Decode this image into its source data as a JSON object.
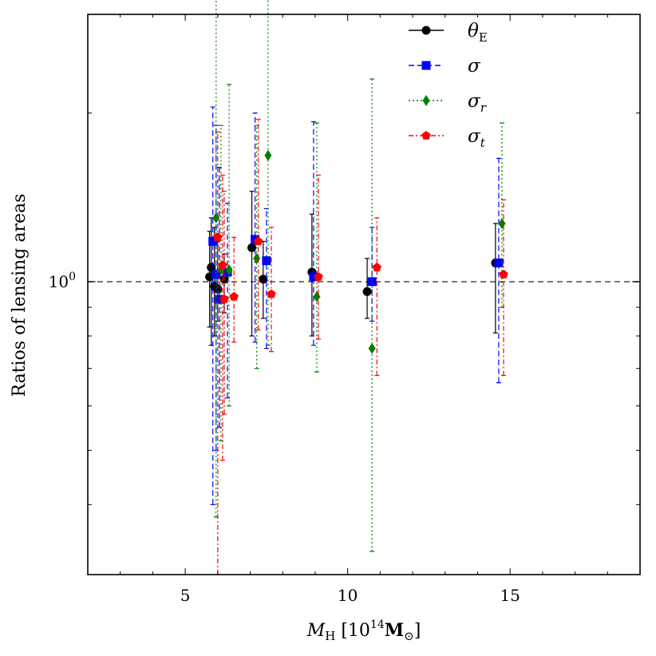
{
  "chart_data": {
    "type": "scatter",
    "title": "",
    "xlabel": "M_H [10^14 M_sun]",
    "ylabel": "Ratios of lensing areas",
    "xlim": [
      2,
      19
    ],
    "ylim": [
      0.3,
      3.0
    ],
    "yscale": "log",
    "xticks": [
      5,
      10,
      15
    ],
    "xtick_labels": [
      "5",
      "10",
      "15"
    ],
    "ytick_label": {
      "base": "10",
      "exponent": "0"
    },
    "reference_line": {
      "y": 1.0,
      "style": "dashed",
      "color": "#777777"
    },
    "series": [
      {
        "name": "theta_E",
        "label": "θ",
        "label_sub": "E",
        "color": "#000000",
        "marker": "circle",
        "line": "solid",
        "points": [
          {
            "x": 5.75,
            "y": 1.02,
            "lo": 0.83,
            "hi": 1.23
          },
          {
            "x": 5.8,
            "y": 1.06,
            "lo": 0.77,
            "hi": 1.3
          },
          {
            "x": 5.9,
            "y": 0.98,
            "lo": 0.8,
            "hi": 1.25
          },
          {
            "x": 6.0,
            "y": 0.97,
            "lo": 0.85,
            "hi": 1.18
          },
          {
            "x": 6.2,
            "y": 1.01,
            "lo": 0.88,
            "hi": 1.12
          },
          {
            "x": 7.05,
            "y": 1.15,
            "lo": 0.8,
            "hi": 1.45
          },
          {
            "x": 7.4,
            "y": 1.01,
            "lo": 0.86,
            "hi": 1.18
          },
          {
            "x": 8.9,
            "y": 1.04,
            "lo": 0.8,
            "hi": 1.32
          },
          {
            "x": 10.6,
            "y": 0.96,
            "lo": 0.86,
            "hi": 1.1
          },
          {
            "x": 14.55,
            "y": 1.08,
            "lo": 0.81,
            "hi": 1.27
          }
        ]
      },
      {
        "name": "sigma",
        "label": "σ",
        "label_sub": "",
        "color": "#0000ff",
        "marker": "square",
        "line": "dashed",
        "points": [
          {
            "x": 5.85,
            "y": 1.18,
            "lo": 0.4,
            "hi": 2.05
          },
          {
            "x": 5.95,
            "y": 1.03,
            "lo": 0.5,
            "hi": 1.9
          },
          {
            "x": 6.05,
            "y": 0.93,
            "lo": 0.55,
            "hi": 1.6
          },
          {
            "x": 6.3,
            "y": 1.04,
            "lo": 0.62,
            "hi": 1.38
          },
          {
            "x": 7.15,
            "y": 1.19,
            "lo": 0.78,
            "hi": 2.0
          },
          {
            "x": 7.5,
            "y": 1.09,
            "lo": 0.76,
            "hi": 1.35
          },
          {
            "x": 8.95,
            "y": 1.02,
            "lo": 0.77,
            "hi": 1.93
          },
          {
            "x": 10.75,
            "y": 1.0,
            "lo": 0.85,
            "hi": 1.25
          },
          {
            "x": 14.65,
            "y": 1.08,
            "lo": 0.66,
            "hi": 1.66
          }
        ]
      },
      {
        "name": "sigma_r",
        "label": "σ",
        "label_sub": "r",
        "color": "#008000",
        "marker": "diamond",
        "line": "dotted",
        "points": [
          {
            "x": 5.95,
            "y": 1.3,
            "lo": 0.38,
            "hi": 4.2
          },
          {
            "x": 6.1,
            "y": 1.05,
            "lo": 0.52,
            "hi": 1.9
          },
          {
            "x": 6.35,
            "y": 1.05,
            "lo": 0.6,
            "hi": 2.25
          },
          {
            "x": 7.2,
            "y": 1.1,
            "lo": 0.7,
            "hi": 1.9
          },
          {
            "x": 7.55,
            "y": 1.68,
            "lo": 0.77,
            "hi": 4.0
          },
          {
            "x": 9.05,
            "y": 0.94,
            "lo": 0.69,
            "hi": 1.92
          },
          {
            "x": 10.75,
            "y": 0.76,
            "lo": 0.33,
            "hi": 2.3
          },
          {
            "x": 14.75,
            "y": 1.27,
            "lo": 0.9,
            "hi": 1.92
          }
        ]
      },
      {
        "name": "sigma_t",
        "label": "σ",
        "label_sub": "t",
        "color": "#ff0000",
        "marker": "pentagon",
        "line": "dashdot",
        "points": [
          {
            "x": 6.0,
            "y": 1.2,
            "lo": 0.3,
            "hi": 1.85
          },
          {
            "x": 6.15,
            "y": 1.07,
            "lo": 0.48,
            "hi": 1.55
          },
          {
            "x": 6.2,
            "y": 0.93,
            "lo": 0.58,
            "hi": 1.45
          },
          {
            "x": 6.5,
            "y": 0.94,
            "lo": 0.78,
            "hi": 1.2
          },
          {
            "x": 7.25,
            "y": 1.18,
            "lo": 0.82,
            "hi": 1.95
          },
          {
            "x": 7.65,
            "y": 0.95,
            "lo": 0.75,
            "hi": 1.25
          },
          {
            "x": 9.1,
            "y": 1.02,
            "lo": 0.79,
            "hi": 1.55
          },
          {
            "x": 10.9,
            "y": 1.06,
            "lo": 0.68,
            "hi": 1.3
          },
          {
            "x": 14.8,
            "y": 1.03,
            "lo": 0.68,
            "hi": 1.4
          }
        ]
      }
    ]
  }
}
